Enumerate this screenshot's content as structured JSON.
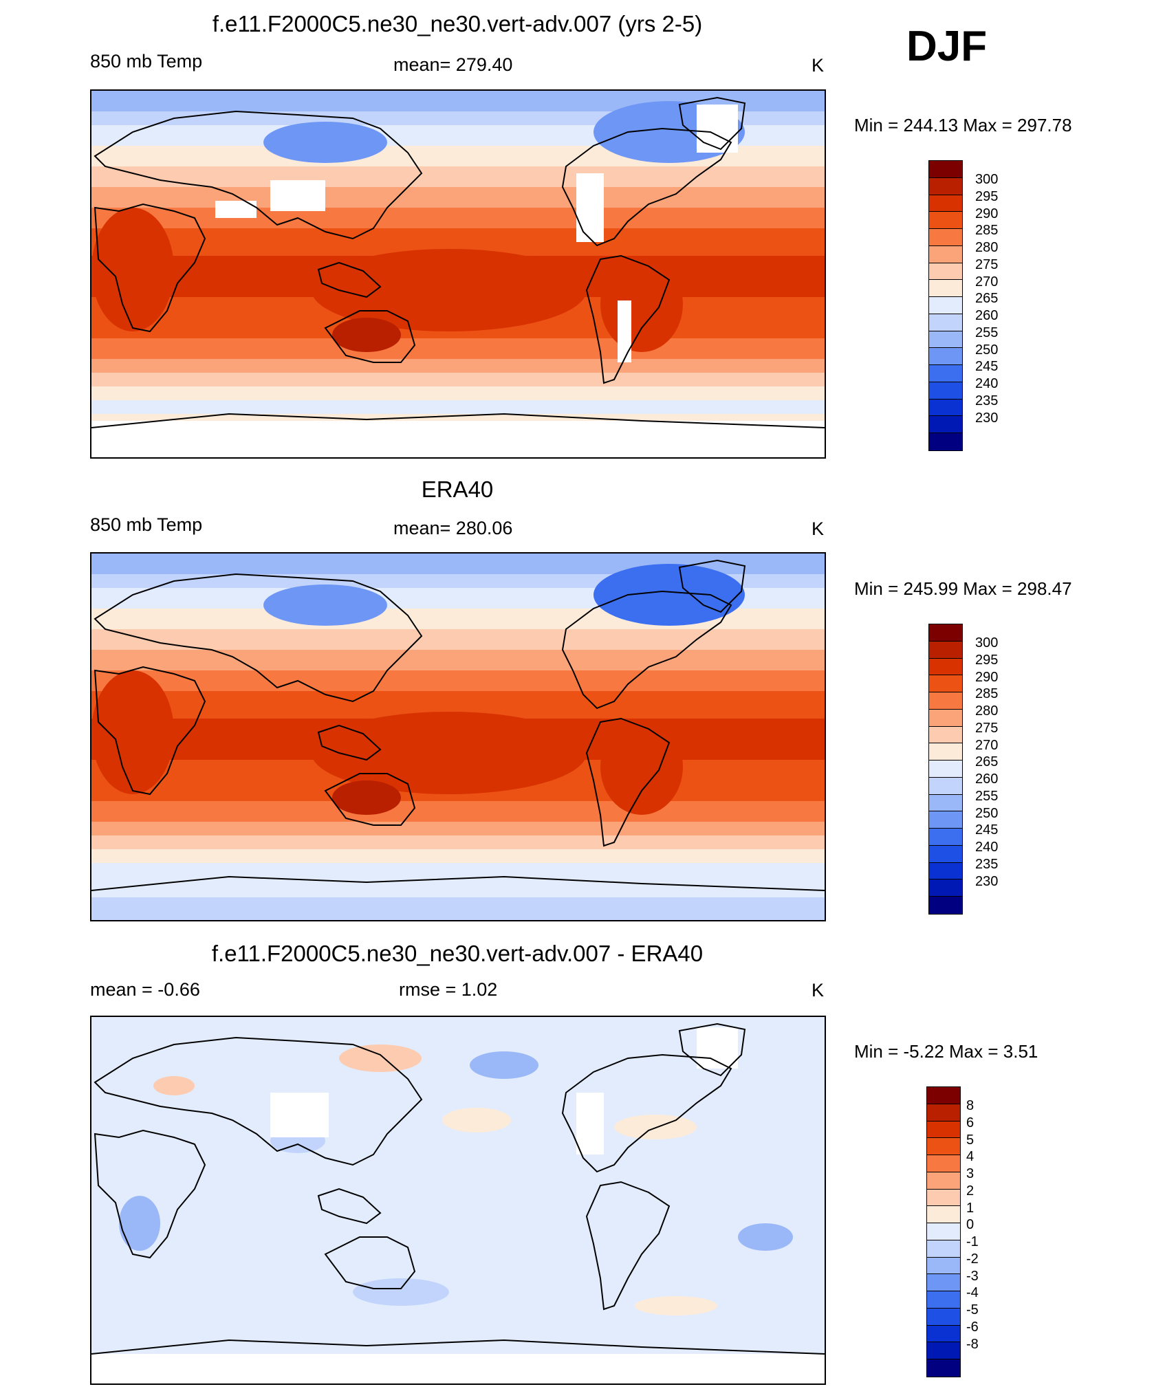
{
  "season": "DJF",
  "palette": {
    "temp": [
      "#000080",
      "#0018b4",
      "#0a32d2",
      "#1e50e6",
      "#3c6ef0",
      "#6e96f5",
      "#9ab8f8",
      "#c2d4fb",
      "#e2ecfd",
      "#fdebd9",
      "#fccbb0",
      "#fba47a",
      "#f77840",
      "#ec5214",
      "#d83200",
      "#b82000",
      "#7d0000"
    ],
    "diff": [
      "#000080",
      "#0018b4",
      "#0a32d2",
      "#1e50e6",
      "#3c6ef0",
      "#6e96f5",
      "#9ab8f8",
      "#c2d4fb",
      "#e2ecfd",
      "#fdebd9",
      "#fccbb0",
      "#fba47a",
      "#f77840",
      "#ec5214",
      "#d83200",
      "#b82000",
      "#7d0000"
    ],
    "coast": "#000000"
  },
  "panels": [
    {
      "id": "model",
      "title": "f.e11.F2000C5.ne30_ne30.vert-adv.007 (yrs 2-5)",
      "left_label": "850 mb Temp",
      "center_label": "mean= 279.40",
      "units": "K",
      "minmax": "Min = 244.13 Max = 297.78",
      "colorbar_labels": [
        "300",
        "295",
        "290",
        "285",
        "280",
        "275",
        "270",
        "265",
        "260",
        "255",
        "250",
        "245",
        "240",
        "235",
        "230"
      ],
      "palette": "temp"
    },
    {
      "id": "obs",
      "title": "ERA40",
      "left_label": "850 mb Temp",
      "center_label": "mean= 280.06",
      "units": "K",
      "minmax": "Min = 245.99 Max = 298.47",
      "colorbar_labels": [
        "300",
        "295",
        "290",
        "285",
        "280",
        "275",
        "270",
        "265",
        "260",
        "255",
        "250",
        "245",
        "240",
        "235",
        "230"
      ],
      "palette": "temp"
    },
    {
      "id": "diff",
      "title": "f.e11.F2000C5.ne30_ne30.vert-adv.007 - ERA40",
      "left_label": "mean =  -0.66",
      "center_label": "rmse =   1.02",
      "units": "K",
      "minmax": "Min =  -5.22 Max =   3.51",
      "colorbar_labels": [
        "8",
        "6",
        "5",
        "4",
        "3",
        "2",
        "1",
        "0",
        "-1",
        "-2",
        "-3",
        "-4",
        "-5",
        "-6",
        "-8"
      ],
      "palette": "diff"
    }
  ]
}
